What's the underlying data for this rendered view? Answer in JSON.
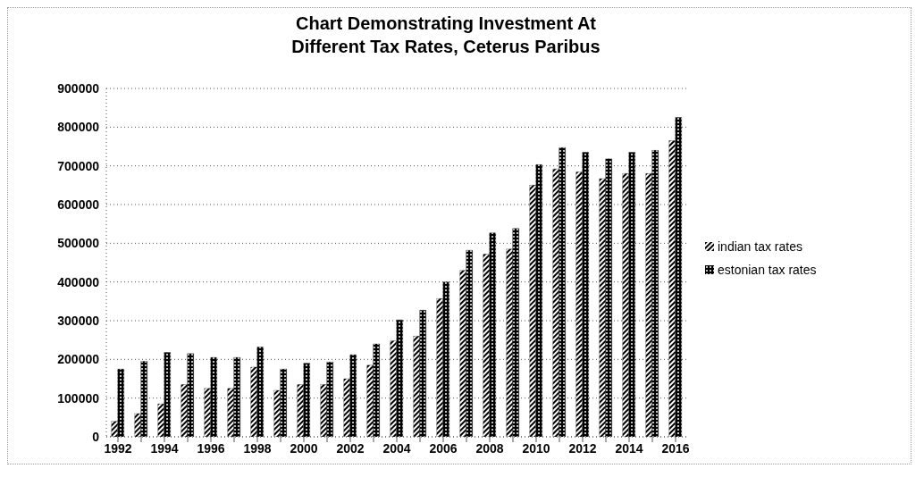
{
  "chart_data": {
    "type": "bar",
    "title": "Chart Demonstrating Investment At Different Tax Rates, Ceterus Paribus",
    "categories": [
      "1992",
      null,
      "1994",
      null,
      "1996",
      null,
      "1998",
      null,
      "2000",
      null,
      "2002",
      null,
      "2004",
      null,
      "2006",
      null,
      "2008",
      null,
      "2010",
      null,
      "2012",
      null,
      "2014",
      null,
      "2016"
    ],
    "series": [
      {
        "name": "indian tax rates",
        "color": "#000000",
        "values": [
          40000,
          60000,
          85000,
          135000,
          125000,
          125000,
          180000,
          120000,
          135000,
          135000,
          150000,
          185000,
          248000,
          260000,
          357000,
          430000,
          472000,
          485000,
          650000,
          692000,
          684000,
          667000,
          680000,
          680000,
          765000
        ]
      },
      {
        "name": "estonian tax rates",
        "color": "#000000",
        "values": [
          175000,
          195000,
          218000,
          215000,
          205000,
          205000,
          232000,
          175000,
          190000,
          193000,
          212000,
          240000,
          302000,
          327000,
          400000,
          482000,
          527000,
          538000,
          703000,
          747000,
          735000,
          718000,
          735000,
          740000,
          825000
        ]
      }
    ],
    "ylim": [
      0,
      900000
    ],
    "yticks": [
      0,
      100000,
      200000,
      300000,
      400000,
      500000,
      600000,
      700000,
      800000,
      900000
    ],
    "grid": "y",
    "legend": "right"
  }
}
